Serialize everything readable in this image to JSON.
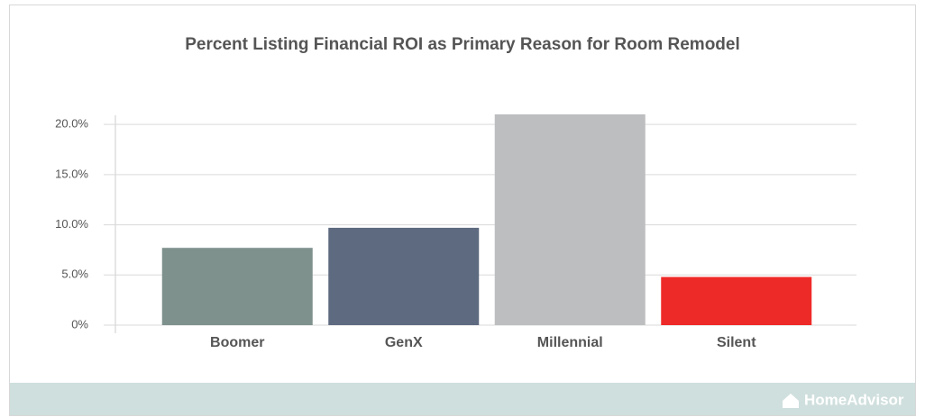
{
  "chart_data": {
    "type": "bar",
    "title": "Percent Listing Financial ROI as Primary Reason for Room Remodel",
    "categories": [
      "Boomer",
      "GenX",
      "Millennial",
      "Silent"
    ],
    "values": [
      7.7,
      9.7,
      21,
      4.8
    ],
    "colors": [
      "#7f918d",
      "#5e6a80",
      "#bdbec0",
      "#ee2a28"
    ],
    "ylim": [
      0,
      21
    ],
    "yticks": [
      {
        "value": 0,
        "label": "0%"
      },
      {
        "value": 5,
        "label": "5.0%"
      },
      {
        "value": 10,
        "label": "10.0%"
      },
      {
        "value": 15,
        "label": "15.0%"
      },
      {
        "value": 20,
        "label": "20.0%"
      }
    ],
    "grid": true
  },
  "footer": {
    "brand": "HomeAdvisor"
  }
}
